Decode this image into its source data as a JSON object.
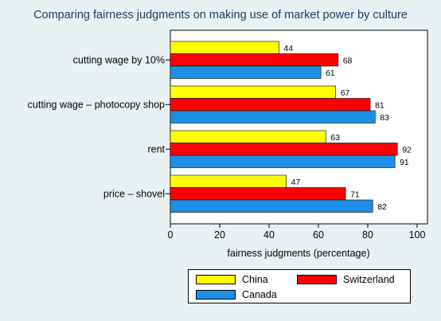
{
  "chart_data": {
    "type": "bar",
    "orientation": "horizontal",
    "title": "Comparing fairness judgments on making use of market power by culture",
    "xlabel": "fairness judgments (percentage)",
    "xlim": [
      0,
      100
    ],
    "xticks": [
      "0",
      "20",
      "40",
      "60",
      "80",
      "100"
    ],
    "categories": [
      "cutting wage by 10%",
      "cutting wage – photocopy shop",
      "rent",
      "price – shovel"
    ],
    "series": [
      {
        "name": "China",
        "color": "#ffff00",
        "values": [
          44,
          67,
          63,
          47
        ]
      },
      {
        "name": "Switzerland",
        "color": "#ff0000",
        "values": [
          68,
          81,
          92,
          71
        ]
      },
      {
        "name": "Canada",
        "color": "#1e8fe6",
        "values": [
          61,
          83,
          91,
          82
        ]
      }
    ],
    "legend_placement": "bottom",
    "grid": false
  }
}
